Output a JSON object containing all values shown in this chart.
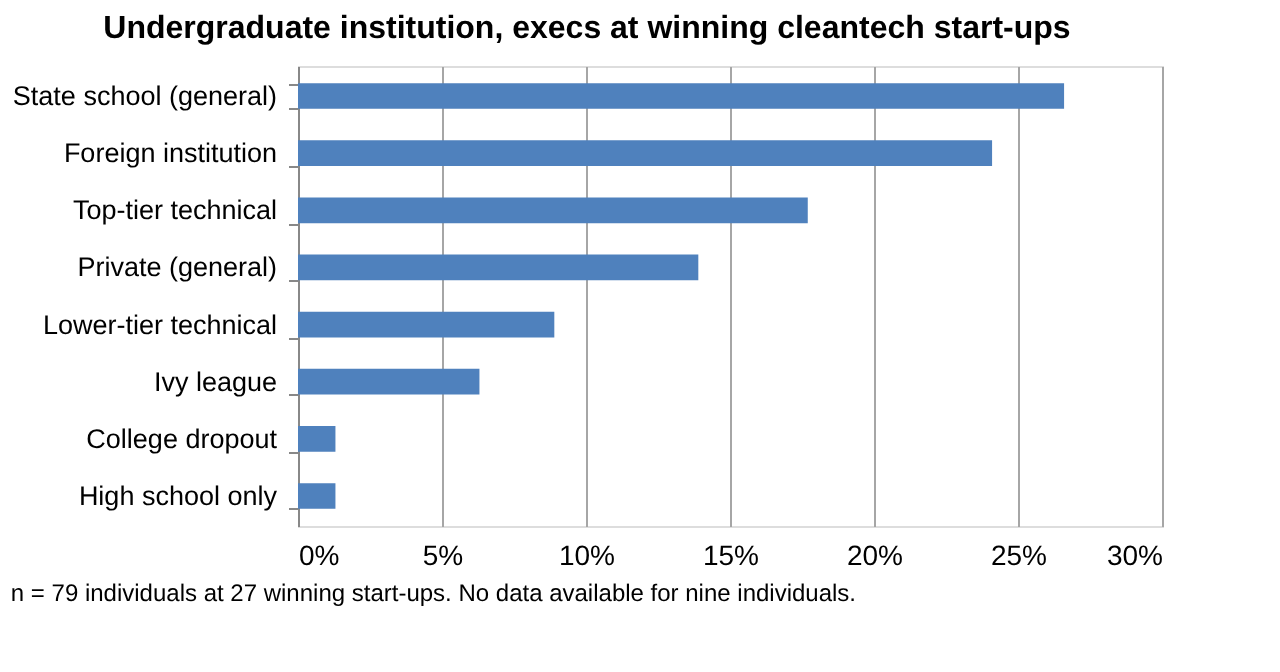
{
  "chart_data": {
    "type": "bar",
    "orientation": "horizontal",
    "title": "Undergraduate institution, execs at winning cleantech start-ups",
    "categories": [
      "State school (general)",
      "Foreign institution",
      "Top-tier technical",
      "Private (general)",
      "Lower-tier technical",
      "Ivy league",
      "College dropout",
      "High school only"
    ],
    "values": [
      26.6,
      24.1,
      17.7,
      13.9,
      8.9,
      6.3,
      1.3,
      1.3
    ],
    "color": "#4f81bd",
    "xlim": [
      0,
      30
    ],
    "xticks": [
      {
        "value": 0,
        "label": "0%"
      },
      {
        "value": 5,
        "label": "5%"
      },
      {
        "value": 10,
        "label": "10%"
      },
      {
        "value": 15,
        "label": "15%"
      },
      {
        "value": 20,
        "label": "20%"
      },
      {
        "value": 25,
        "label": "25%"
      },
      {
        "value": 30,
        "label": "30%"
      }
    ],
    "grid": "x",
    "annotations": [
      "n = 79 individuals at 27 winning start-ups. No data available for nine individuals."
    ]
  }
}
